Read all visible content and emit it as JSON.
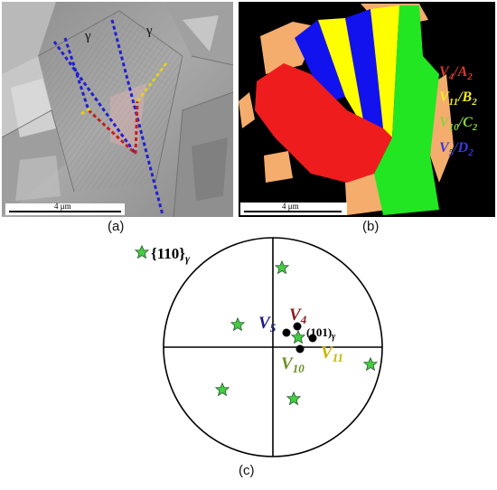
{
  "panel_a": {
    "caption": "(a)",
    "scale_bar": "4 μm",
    "gamma_labels": [
      "γ",
      "γ"
    ]
  },
  "panel_b": {
    "caption": "(b)",
    "scale_bar": "4 μm",
    "legend": [
      {
        "variant": "V",
        "vsub": "4",
        "slash": "/",
        "letter": "A",
        "lsub": "2",
        "color": "#d93a2b"
      },
      {
        "variant": "V",
        "vsub": "11",
        "slash": "/",
        "letter": "B",
        "lsub": "2",
        "color": "#f2ee2a"
      },
      {
        "variant": "V",
        "vsub": "10",
        "slash": "/",
        "letter": "C",
        "lsub": "2",
        "color": "#8ad33a"
      },
      {
        "variant": "V",
        "vsub": "5",
        "slash": "/",
        "letter": "D",
        "lsub": "2",
        "color": "#3a3ae0"
      }
    ],
    "colors": {
      "red": "#ee1c1c",
      "yellow": "#ffff00",
      "green": "#22e622",
      "blue": "#1212ee",
      "tan": "#f4ad6c",
      "background": "#000000"
    }
  },
  "panel_c": {
    "caption": "(c)",
    "legend_label": "{110}",
    "legend_sub": "γ",
    "center_label": "(101)",
    "center_sub": "γ",
    "variant_labels": [
      {
        "base": "V",
        "sub": "4",
        "color": "#8b1a1a"
      },
      {
        "base": "V",
        "sub": "5",
        "color": "#1a1a8b"
      },
      {
        "base": "V",
        "sub": "10",
        "color": "#6b8e23"
      },
      {
        "base": "V",
        "sub": "11",
        "color": "#c8b400"
      }
    ],
    "star_color": "#44cc44"
  }
}
